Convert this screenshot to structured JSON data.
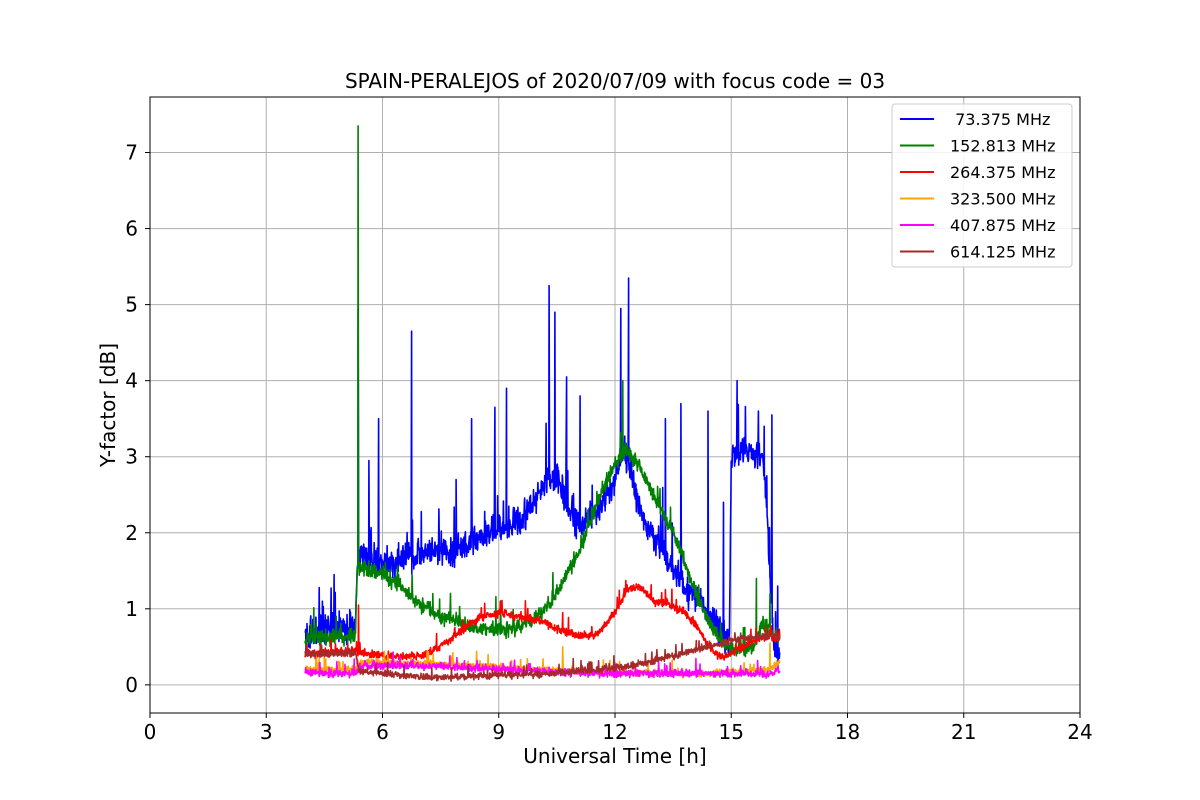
{
  "chart_data": {
    "type": "line",
    "title": "SPAIN-PERALEJOS of 2020/07/09 with focus code = 03",
    "xlabel": "Universal Time [h]",
    "ylabel": "Y-factor [dB]",
    "xlim": [
      0,
      24
    ],
    "ylim": [
      -0.37,
      7.73
    ],
    "xticks": [
      0,
      3,
      6,
      9,
      12,
      15,
      18,
      21,
      24
    ],
    "yticks": [
      0,
      1,
      2,
      3,
      4,
      5,
      6,
      7
    ],
    "grid": true,
    "legend_position": "top-right",
    "series": [
      {
        "name": " 73.375 MHz",
        "color": "#0000ff",
        "noise": 0.18,
        "x": [
          4.0,
          4.3,
          4.6,
          5.0,
          5.3,
          5.35,
          5.4,
          5.6,
          5.8,
          6.0,
          6.3,
          6.6,
          6.9,
          7.2,
          7.5,
          7.8,
          8.1,
          8.4,
          8.7,
          9.0,
          9.3,
          9.6,
          9.9,
          10.2,
          10.5,
          10.8,
          11.1,
          11.4,
          11.7,
          12.0,
          12.2,
          12.4,
          12.6,
          12.8,
          13.0,
          13.2,
          13.4,
          13.6,
          13.8,
          14.0,
          14.2,
          14.4,
          14.6,
          14.8,
          14.95,
          15.0,
          15.2,
          15.4,
          15.6,
          15.8,
          15.9,
          16.0,
          16.1,
          16.25
        ],
        "y": [
          0.65,
          0.7,
          0.75,
          0.72,
          0.75,
          1.6,
          1.7,
          1.7,
          1.65,
          1.6,
          1.6,
          1.7,
          1.7,
          1.75,
          1.8,
          1.75,
          1.8,
          1.9,
          2.0,
          2.05,
          2.1,
          2.2,
          2.4,
          2.7,
          2.75,
          2.3,
          2.05,
          2.2,
          2.4,
          2.7,
          3.1,
          2.85,
          2.4,
          2.1,
          1.9,
          1.8,
          1.6,
          1.45,
          1.3,
          1.2,
          1.1,
          0.95,
          0.85,
          0.6,
          0.55,
          3.0,
          3.05,
          3.1,
          3.05,
          3.0,
          2.5,
          1.4,
          0.5,
          0.35
        ],
        "spikes": [
          [
            4.45,
            1.1
          ],
          [
            4.75,
            1.45
          ],
          [
            5.37,
            4.95
          ],
          [
            5.65,
            2.95
          ],
          [
            5.9,
            3.5
          ],
          [
            6.75,
            4.65
          ],
          [
            7.9,
            2.7
          ],
          [
            8.3,
            3.5
          ],
          [
            8.9,
            3.65
          ],
          [
            9.2,
            3.9
          ],
          [
            10.3,
            5.25
          ],
          [
            10.45,
            4.9
          ],
          [
            10.75,
            4.05
          ],
          [
            11.1,
            3.8
          ],
          [
            12.15,
            4.95
          ],
          [
            12.35,
            5.35
          ],
          [
            13.3,
            3.5
          ],
          [
            13.7,
            3.7
          ],
          [
            14.4,
            3.6
          ],
          [
            14.8,
            2.4
          ],
          [
            15.15,
            4.0
          ],
          [
            15.7,
            3.6
          ],
          [
            15.85,
            3.4
          ],
          [
            16.05,
            3.55
          ],
          [
            16.2,
            1.3
          ]
        ]
      },
      {
        "name": "152.813 MHz",
        "color": "#008000",
        "noise": 0.09,
        "x": [
          4.0,
          4.5,
          5.0,
          5.3,
          5.35,
          5.4,
          5.7,
          6.0,
          6.3,
          6.6,
          6.9,
          7.2,
          7.5,
          7.8,
          8.1,
          8.4,
          8.7,
          9.0,
          9.3,
          9.6,
          9.9,
          10.2,
          10.5,
          10.8,
          11.1,
          11.4,
          11.7,
          12.0,
          12.3,
          12.6,
          12.9,
          13.2,
          13.5,
          13.8,
          14.1,
          14.4,
          14.7,
          15.0,
          15.3,
          15.6,
          15.8,
          16.0,
          16.25
        ],
        "y": [
          0.6,
          0.62,
          0.63,
          0.65,
          1.55,
          1.55,
          1.5,
          1.45,
          1.35,
          1.25,
          1.1,
          1.0,
          0.9,
          0.85,
          0.8,
          0.75,
          0.72,
          0.72,
          0.73,
          0.78,
          0.85,
          1.0,
          1.2,
          1.5,
          1.8,
          2.2,
          2.6,
          2.9,
          3.1,
          2.9,
          2.6,
          2.3,
          2.0,
          1.6,
          1.2,
          0.85,
          0.6,
          0.48,
          0.45,
          0.5,
          0.8,
          0.7,
          0.6
        ],
        "spikes": [
          [
            5.37,
            7.35
          ],
          [
            11.3,
            2.3
          ],
          [
            12.2,
            4.0
          ],
          [
            15.65,
            1.4
          ],
          [
            16.0,
            1.2
          ]
        ]
      },
      {
        "name": "264.375 MHz",
        "color": "#ff0000",
        "noise": 0.05,
        "x": [
          4.0,
          5.3,
          5.4,
          6.0,
          6.5,
          7.0,
          7.5,
          8.0,
          8.5,
          9.0,
          9.5,
          10.0,
          10.5,
          11.0,
          11.5,
          12.0,
          12.3,
          12.6,
          13.0,
          13.4,
          13.8,
          14.2,
          14.5,
          14.8,
          15.1,
          15.5,
          16.0,
          16.25
        ],
        "y": [
          0.4,
          0.45,
          0.42,
          0.38,
          0.37,
          0.38,
          0.5,
          0.7,
          0.88,
          0.95,
          0.9,
          0.85,
          0.75,
          0.65,
          0.65,
          0.95,
          1.25,
          1.3,
          1.1,
          1.05,
          0.95,
          0.7,
          0.45,
          0.35,
          0.45,
          0.55,
          0.65,
          0.6
        ],
        "spikes": [
          [
            5.38,
            1.05
          ],
          [
            10.65,
            0.95
          ]
        ]
      },
      {
        "name": "323.500 MHz",
        "color": "#ffa500",
        "noise": 0.04,
        "x": [
          4.0,
          5.3,
          5.5,
          7.0,
          8.5,
          10.0,
          11.5,
          13.0,
          14.5,
          16.0,
          16.25
        ],
        "y": [
          0.2,
          0.2,
          0.3,
          0.28,
          0.25,
          0.2,
          0.18,
          0.15,
          0.15,
          0.2,
          0.3
        ],
        "spikes": [
          [
            10.65,
            0.5
          ],
          [
            16.0,
            0.55
          ]
        ]
      },
      {
        "name": "407.875 MHz",
        "color": "#ff00ff",
        "noise": 0.045,
        "x": [
          4.0,
          5.3,
          5.5,
          7.0,
          8.5,
          10.0,
          11.5,
          13.0,
          14.5,
          16.0,
          16.25
        ],
        "y": [
          0.15,
          0.15,
          0.25,
          0.25,
          0.22,
          0.18,
          0.15,
          0.15,
          0.15,
          0.15,
          0.2
        ],
        "spikes": []
      },
      {
        "name": "614.125 MHz",
        "color": "#a52a2a",
        "noise": 0.04,
        "x": [
          4.0,
          5.3,
          5.4,
          6.5,
          7.5,
          8.5,
          9.5,
          10.5,
          11.0,
          11.5,
          12.0,
          12.5,
          13.0,
          13.5,
          14.0,
          14.5,
          15.0,
          15.5,
          16.0,
          16.25
        ],
        "y": [
          0.4,
          0.42,
          0.18,
          0.12,
          0.1,
          0.12,
          0.13,
          0.15,
          0.18,
          0.2,
          0.22,
          0.26,
          0.32,
          0.38,
          0.45,
          0.52,
          0.58,
          0.62,
          0.65,
          0.62
        ],
        "spikes": []
      }
    ]
  }
}
